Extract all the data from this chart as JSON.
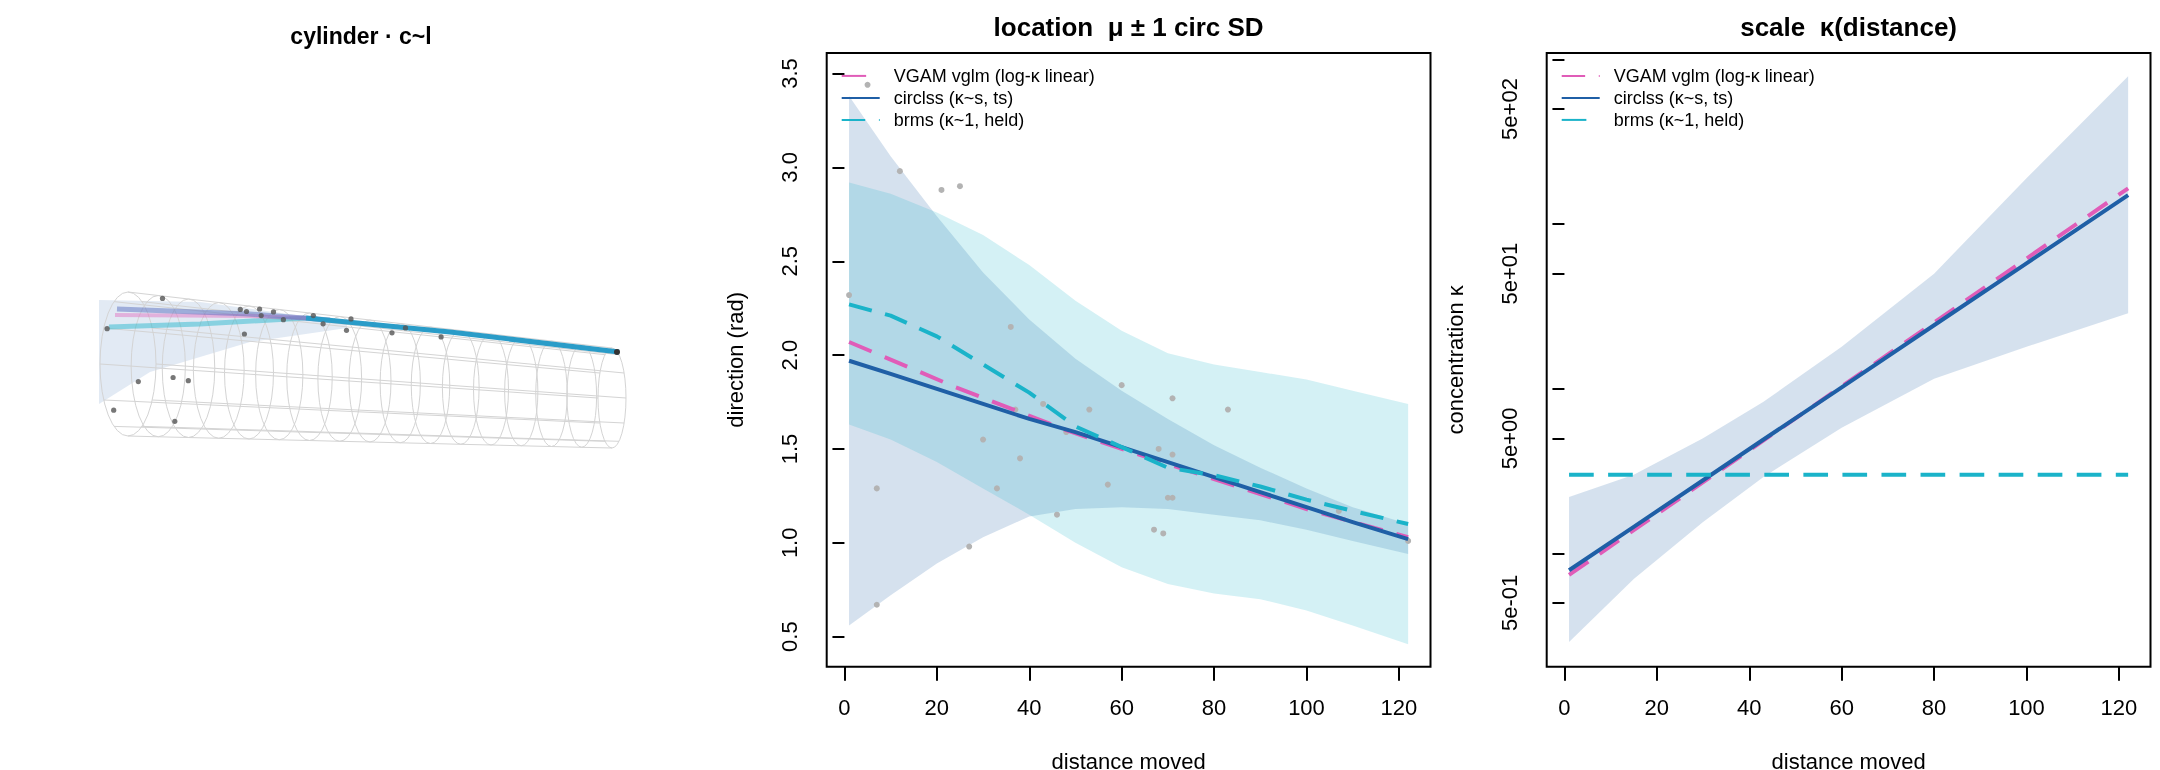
{
  "chart_data": [
    {
      "type": "other",
      "title": "cylinder · c~l"
    },
    {
      "type": "line",
      "title": "location  μ ± 1 circ SD",
      "xlabel": "distance moved",
      "ylabel": "direction (rad)",
      "xlim": [
        -3.84,
        126.84
      ],
      "ylim": [
        0.34,
        3.61
      ],
      "xticks": [
        0,
        20,
        40,
        60,
        80,
        100,
        120
      ],
      "yticks": [
        0.5,
        {
          "value": 1,
          "label": "1.0"
        },
        1.5,
        {
          "value": 2,
          "label": "2.0"
        },
        2.5,
        {
          "value": 3,
          "label": "3.0"
        },
        3.5
      ],
      "legend": "top left",
      "series": [
        {
          "name": "VGAM vglm (log-κ linear)",
          "color": "#e05cb8",
          "line_style": "dashed",
          "x": [
            1,
            24,
            48,
            60,
            80,
            100,
            122
          ],
          "values": [
            2.07,
            1.83,
            1.6,
            1.5,
            1.34,
            1.18,
            1.03
          ]
        },
        {
          "name": "circlss (κ~s, ts)",
          "color": "#1f5fa6",
          "line_style": "solid",
          "x": [
            1,
            10,
            20,
            30,
            40,
            50,
            60,
            70,
            80,
            90,
            100,
            110,
            122
          ],
          "values": [
            1.97,
            1.9,
            1.82,
            1.74,
            1.66,
            1.59,
            1.51,
            1.43,
            1.35,
            1.27,
            1.19,
            1.11,
            1.02
          ],
          "lower": [
            0.56,
            0.72,
            0.89,
            1.03,
            1.14,
            1.18,
            1.19,
            1.18,
            1.15,
            1.12,
            1.07,
            1.01,
            0.94
          ],
          "upper": [
            3.38,
            3.06,
            2.74,
            2.44,
            2.19,
            1.98,
            1.81,
            1.66,
            1.52,
            1.4,
            1.29,
            1.19,
            1.1
          ]
        },
        {
          "name": "brms (κ~1, held)",
          "color": "#1ab3c9",
          "line_style": "dashed",
          "x": [
            1,
            10,
            20,
            30,
            40,
            50,
            60,
            70,
            80,
            90,
            100,
            110,
            122
          ],
          "values": [
            2.27,
            2.21,
            2.1,
            1.95,
            1.8,
            1.62,
            1.51,
            1.4,
            1.36,
            1.3,
            1.23,
            1.17,
            1.1
          ],
          "lower": [
            1.63,
            1.55,
            1.43,
            1.29,
            1.15,
            1.0,
            0.87,
            0.78,
            0.73,
            0.7,
            0.64,
            0.56,
            0.46
          ],
          "upper": [
            2.92,
            2.86,
            2.76,
            2.64,
            2.48,
            2.29,
            2.13,
            2.01,
            1.95,
            1.91,
            1.87,
            1.81,
            1.74
          ]
        },
        {
          "type": "scatter",
          "color": "#b3b3b3",
          "marker": "circle",
          "x": [
            1,
            5,
            7,
            7,
            12,
            21,
            25,
            27,
            30,
            33,
            36,
            37,
            38,
            43,
            46,
            48,
            53,
            57,
            60,
            67,
            68,
            69,
            70,
            71,
            71,
            71,
            83,
            107,
            122
          ],
          "values": [
            2.32,
            3.44,
            1.29,
            0.67,
            2.98,
            2.88,
            2.9,
            0.98,
            1.55,
            1.29,
            2.15,
            1.71,
            1.45,
            1.74,
            1.15,
            1.59,
            1.71,
            1.31,
            1.84,
            1.07,
            1.5,
            1.05,
            1.24,
            1.24,
            1.47,
            1.77,
            1.71,
            1.17,
            1.01
          ]
        }
      ]
    },
    {
      "type": "line",
      "title": "scale  κ(distance)",
      "xlabel": "distance moved",
      "ylabel": "concentration κ",
      "log": true,
      "xlim": [
        -3.84,
        126.84
      ],
      "ylim": [
        0.205,
        1096
      ],
      "xticks": [
        0,
        20,
        40,
        60,
        80,
        100,
        120
      ],
      "yticks": [
        {
          "value": 0.5,
          "label": "5e-01"
        },
        {
          "value": 1,
          "label": null
        },
        {
          "value": 5,
          "label": "5e+00"
        },
        {
          "value": 10,
          "label": null
        },
        {
          "value": 50,
          "label": "5e+01"
        },
        {
          "value": 100,
          "label": null
        },
        {
          "value": 500,
          "label": "5e+02"
        },
        {
          "value": 1000,
          "label": null
        }
      ],
      "legend": "top left",
      "series": [
        {
          "name": "VGAM vglm (log-κ linear)",
          "color": "#e05cb8",
          "line_style": "dashed",
          "x": [
            1,
            122
          ],
          "values": [
            0.74,
            165
          ]
        },
        {
          "name": "circlss (κ~s, ts)",
          "color": "#1f5fa6",
          "line_style": "solid",
          "x": [
            1,
            15,
            30,
            43,
            60,
            80,
            100,
            122
          ],
          "values": [
            0.79,
            1.45,
            2.78,
            4.9,
            10.2,
            24.3,
            57.8,
            150
          ],
          "lower": [
            0.29,
            0.7,
            1.55,
            2.9,
            5.8,
            11.5,
            18,
            28.7
          ],
          "upper": [
            2.2,
            3.0,
            5.0,
            8.3,
            18,
            50,
            190,
            790
          ]
        },
        {
          "name": "brms (κ~1, held)",
          "color": "#1ab3c9",
          "line_style": "dashed",
          "x": [
            1,
            122
          ],
          "values": [
            3.0,
            3.0
          ]
        }
      ]
    }
  ]
}
